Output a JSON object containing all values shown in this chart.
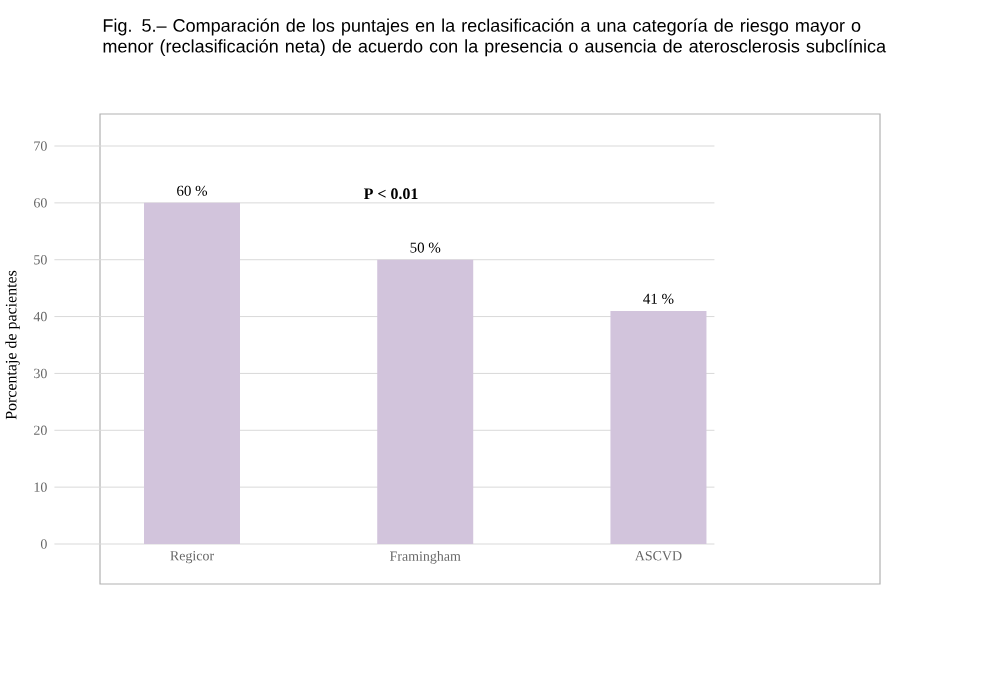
{
  "chart_data": {
    "type": "bar",
    "title": "Fig. 5.– Comparación de los puntajes en la reclasificación a una categoría de riesgo mayor o menor (reclasificación neta) de acuerdo con la presencia o ausencia de aterosclerosis subclínica",
    "ylabel": "Porcentaje de pacientes",
    "categories": [
      "Regicor",
      "Framingham",
      "ASCVD"
    ],
    "values": [
      60,
      50,
      41
    ],
    "value_labels": [
      "60 %",
      "50 %",
      "41 %"
    ],
    "color": "#d2c4dc",
    "ylim": [
      0,
      70
    ],
    "yticks": [
      0,
      10,
      20,
      30,
      40,
      50,
      60,
      70
    ],
    "grid": "y",
    "annotations": [
      "P < 0.01"
    ]
  }
}
